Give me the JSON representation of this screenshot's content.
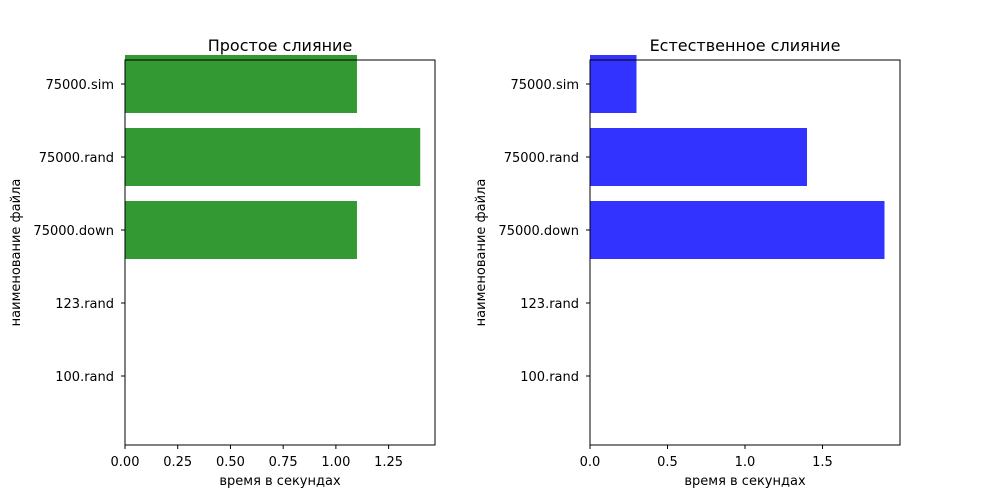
{
  "chart_data": [
    {
      "type": "bar",
      "orientation": "horizontal",
      "title": "Простое слияние",
      "xlabel": "время в секундах",
      "ylabel": "наименование файла",
      "categories": [
        "100.rand",
        "123.rand",
        "75000.down",
        "75000.rand",
        "75000.sim"
      ],
      "values": [
        0,
        0,
        1.1,
        1.4,
        1.1
      ],
      "xlim": [
        0,
        1.47
      ],
      "xticks": [
        "0.00",
        "0.25",
        "0.50",
        "0.75",
        "1.00",
        "1.25"
      ],
      "bar_color": "#339933",
      "grid": false
    },
    {
      "type": "bar",
      "orientation": "horizontal",
      "title": "Естественное слияние",
      "xlabel": "время в секундах",
      "ylabel": "наименование файла",
      "categories": [
        "100.rand",
        "123.rand",
        "75000.down",
        "75000.rand",
        "75000.sim"
      ],
      "values": [
        0,
        0,
        1.9,
        1.4,
        0.3
      ],
      "xlim": [
        0,
        2.0
      ],
      "xticks": [
        "0.0",
        "0.5",
        "1.0",
        "1.5"
      ],
      "bar_color": "#3333ff",
      "grid": false
    }
  ]
}
